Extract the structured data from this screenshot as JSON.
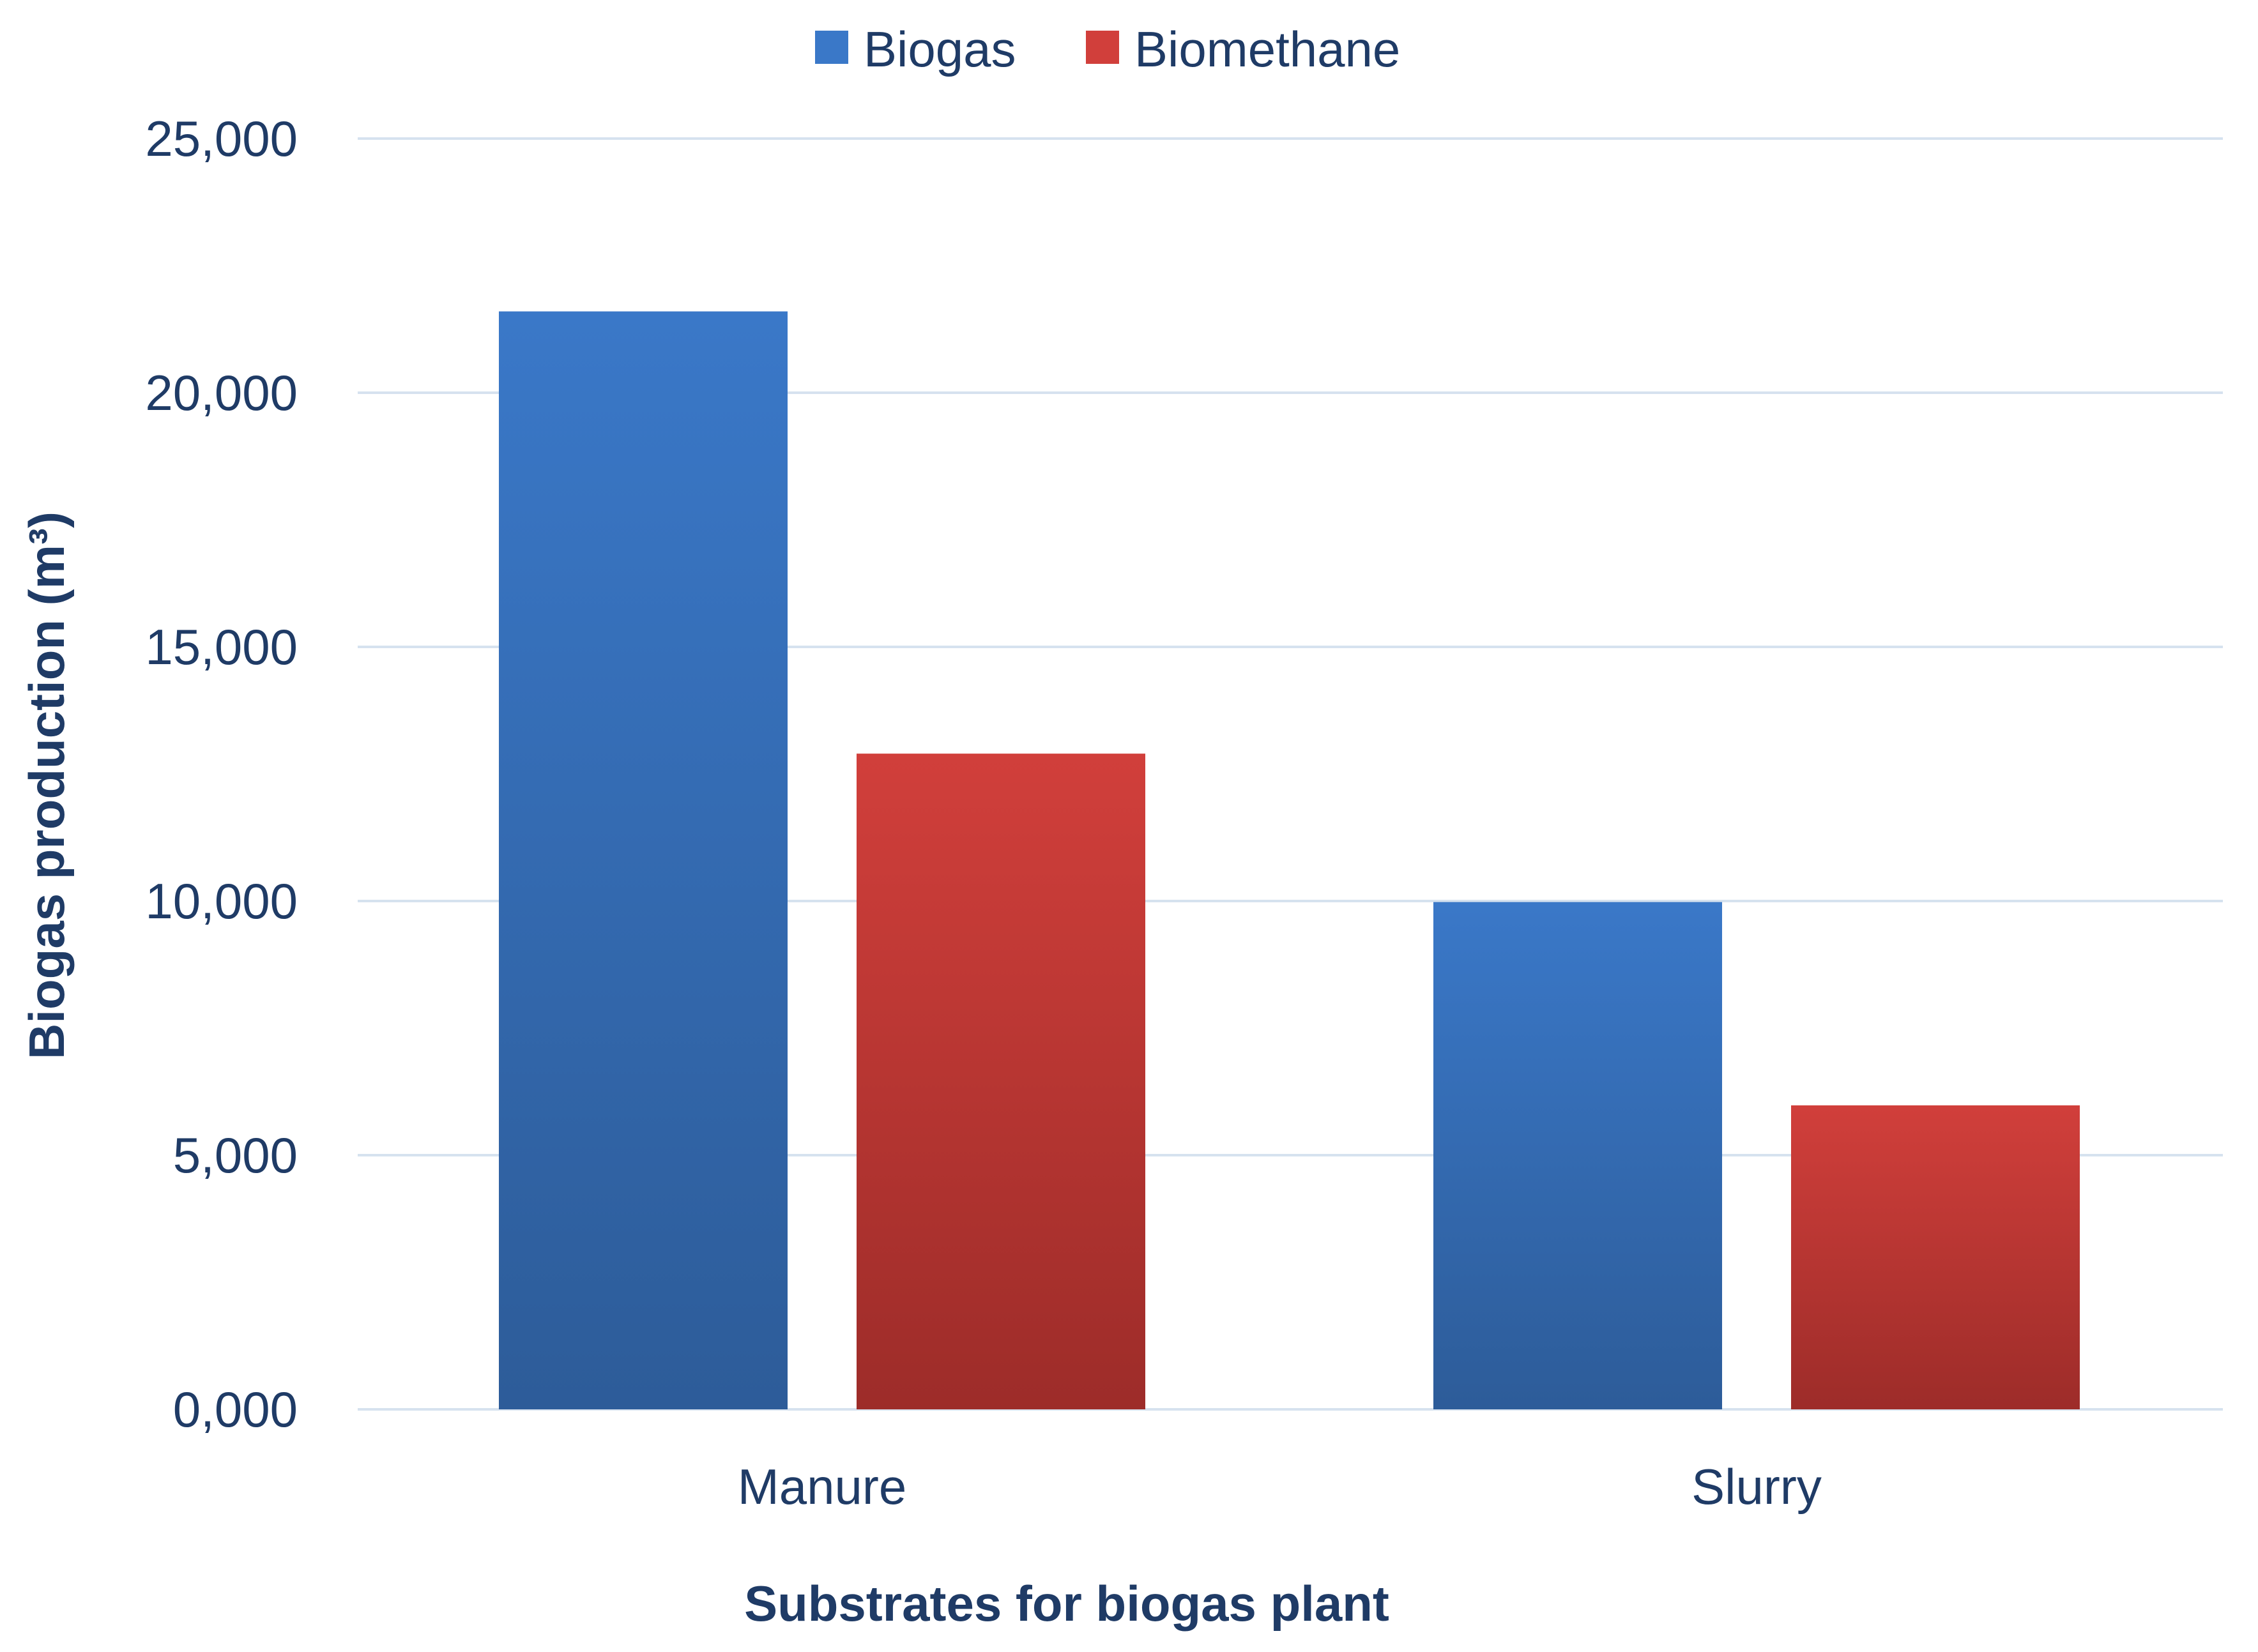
{
  "chart_data": {
    "type": "bar",
    "categories": [
      "Manure",
      "Slurry"
    ],
    "series": [
      {
        "name": "Biogas",
        "values": [
          21600,
          9980
        ],
        "color": "#3a78c8",
        "color_dark": "#2d5c99"
      },
      {
        "name": "Biomethane",
        "values": [
          12900,
          5980
        ],
        "color": "#d13f3b",
        "color_dark": "#9d2c29"
      }
    ],
    "yticks": [
      "0,000",
      "5,000",
      "10,000",
      "15,000",
      "20,000",
      "25,000"
    ],
    "ylim": [
      0,
      25000
    ],
    "xlabel": "Substrates for biogas plant",
    "ylabel": "Biogas production (m³)",
    "grid": true,
    "legend_position": "top-center"
  }
}
